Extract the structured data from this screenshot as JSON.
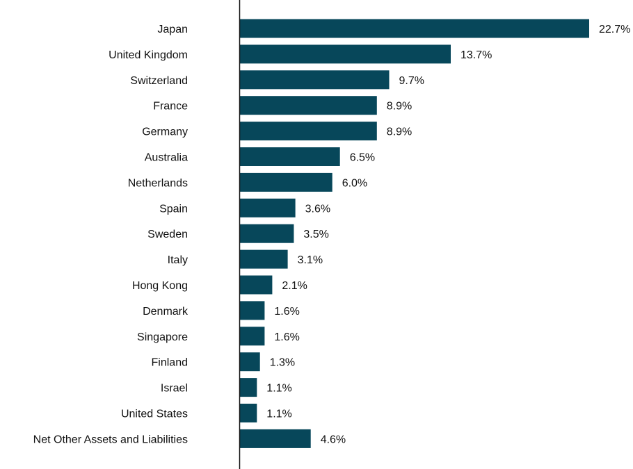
{
  "chart_data": {
    "type": "bar",
    "orientation": "horizontal",
    "title": "",
    "xlabel": "",
    "ylabel": "",
    "value_suffix": "%",
    "grid": false,
    "legend": "none",
    "bar_color": "#07475a",
    "axis_color": "#111111",
    "categories": [
      "Japan",
      "United Kingdom",
      "Switzerland",
      "France",
      "Germany",
      "Australia",
      "Netherlands",
      "Spain",
      "Sweden",
      "Italy",
      "Hong Kong",
      "Denmark",
      "Singapore",
      "Finland",
      "Israel",
      "United States",
      "Net Other Assets and Liabilities"
    ],
    "values": [
      22.7,
      13.7,
      9.7,
      8.9,
      8.9,
      6.5,
      6.0,
      3.6,
      3.5,
      3.1,
      2.1,
      1.6,
      1.6,
      1.3,
      1.1,
      1.1,
      4.6
    ],
    "value_labels": [
      "22.7%",
      "13.7%",
      "9.7%",
      "8.9%",
      "8.9%",
      "6.5%",
      "6.0%",
      "3.6%",
      "3.5%",
      "3.1%",
      "2.1%",
      "1.6%",
      "1.6%",
      "1.3%",
      "1.1%",
      "1.1%",
      "4.6%"
    ]
  }
}
